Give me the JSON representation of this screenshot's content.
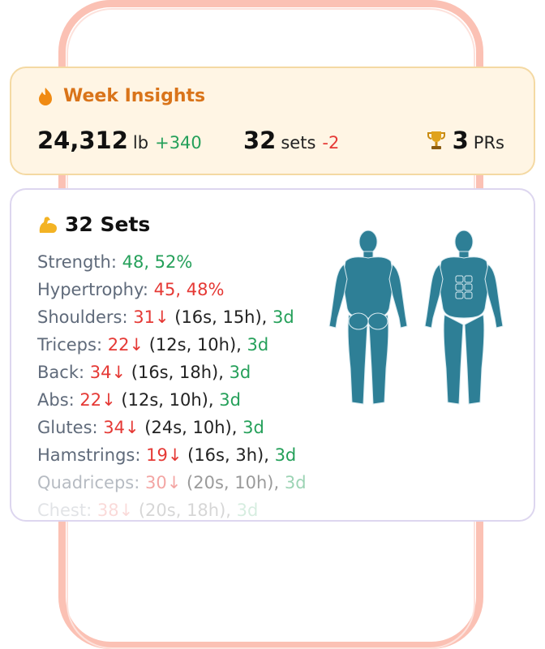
{
  "insights": {
    "title": "Week Insights",
    "icon": "flame-icon",
    "accent": "#d9741a",
    "volume": {
      "value": "24,312",
      "unit": "lb",
      "delta": "+340"
    },
    "sets": {
      "value": "32",
      "unit": "sets",
      "delta": "-2"
    },
    "prs": {
      "value": "3",
      "unit": "PRs",
      "icon": "trophy-icon"
    }
  },
  "sets_card": {
    "title": "32 Sets",
    "icon": "flexed-biceps-icon",
    "strength": {
      "label": "Strength:",
      "value": "48, 52%"
    },
    "hypertrophy": {
      "label": "Hypertrophy:",
      "value": "45, 48%"
    },
    "muscles": [
      {
        "name": "Shoulders:",
        "count": "31↓",
        "detail": "(16s, 15h),",
        "days": "3d"
      },
      {
        "name": "Triceps:",
        "count": "22↓",
        "detail": "(12s, 10h),",
        "days": "3d"
      },
      {
        "name": "Back:",
        "count": "34↓",
        "detail": "(16s, 18h),",
        "days": "3d"
      },
      {
        "name": "Abs:",
        "count": "22↓",
        "detail": "(12s, 10h),",
        "days": "3d"
      },
      {
        "name": "Glutes:",
        "count": "34↓",
        "detail": "(24s, 10h),",
        "days": "3d"
      },
      {
        "name": "Hamstrings:",
        "count": "19↓",
        "detail": "(16s, 3h),",
        "days": "3d"
      },
      {
        "name": "Quadriceps:",
        "count": "30↓",
        "detail": "(20s, 10h),",
        "days": "3d"
      },
      {
        "name": "Chest:",
        "count": "38↓",
        "detail": "(20s, 18h),",
        "days": "3d"
      }
    ],
    "body_color": "#2e7f96"
  }
}
